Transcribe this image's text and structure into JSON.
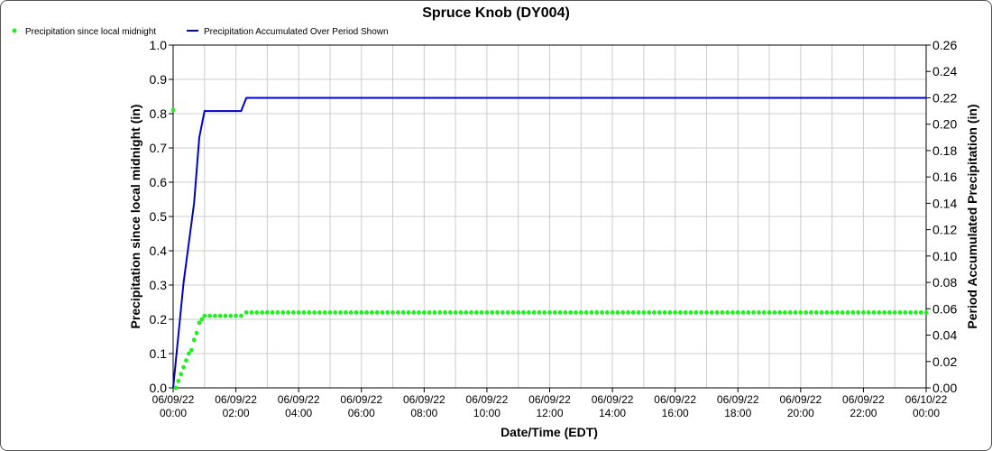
{
  "chart_data": {
    "type": "line",
    "title": "Spruce Knob (DY004)",
    "xlabel": "Date/Time (EDT)",
    "ylabel_left": "Precipitation since local midnight (in)",
    "ylabel_right": "Period Accumulated Precipitation (in)",
    "ylim_left": [
      0,
      1.0
    ],
    "ylim_right": [
      0,
      0.26
    ],
    "xlim_hours": [
      0,
      24
    ],
    "grid": true,
    "legend_placement": "top-left",
    "y_ticks_left": [
      "0.0",
      "0.1",
      "0.2",
      "0.3",
      "0.4",
      "0.5",
      "0.6",
      "0.7",
      "0.8",
      "0.9",
      "1.0"
    ],
    "y_ticks_right": [
      "0.00",
      "0.02",
      "0.04",
      "0.06",
      "0.08",
      "0.10",
      "0.12",
      "0.14",
      "0.16",
      "0.18",
      "0.20",
      "0.22",
      "0.24",
      "0.26"
    ],
    "x_ticks": [
      {
        "date": "06/09/22",
        "time": "00:00"
      },
      {
        "date": "06/09/22",
        "time": "02:00"
      },
      {
        "date": "06/09/22",
        "time": "04:00"
      },
      {
        "date": "06/09/22",
        "time": "06:00"
      },
      {
        "date": "06/09/22",
        "time": "08:00"
      },
      {
        "date": "06/09/22",
        "time": "10:00"
      },
      {
        "date": "06/09/22",
        "time": "12:00"
      },
      {
        "date": "06/09/22",
        "time": "14:00"
      },
      {
        "date": "06/09/22",
        "time": "16:00"
      },
      {
        "date": "06/09/22",
        "time": "18:00"
      },
      {
        "date": "06/09/22",
        "time": "20:00"
      },
      {
        "date": "06/09/22",
        "time": "22:00"
      },
      {
        "date": "06/10/22",
        "time": "00:00"
      }
    ],
    "series": [
      {
        "name": "Precipitation since local midnight",
        "axis": "left",
        "style": "dots",
        "color": "#22ee22",
        "points": [
          {
            "time": "00:00",
            "value": 0.81
          },
          {
            "time": "00:05",
            "value": 0.0
          },
          {
            "time": "00:10",
            "value": 0.02
          },
          {
            "time": "00:15",
            "value": 0.04
          },
          {
            "time": "00:20",
            "value": 0.06
          },
          {
            "time": "00:25",
            "value": 0.08
          },
          {
            "time": "00:30",
            "value": 0.1
          },
          {
            "time": "00:35",
            "value": 0.11
          },
          {
            "time": "00:40",
            "value": 0.14
          },
          {
            "time": "00:45",
            "value": 0.16
          },
          {
            "time": "00:50",
            "value": 0.19
          },
          {
            "time": "00:55",
            "value": 0.2
          },
          {
            "time": "01:00",
            "value": 0.21
          },
          {
            "time": "02:10",
            "value": 0.21
          },
          {
            "time": "02:15",
            "value": 0.22
          },
          {
            "time": "00:00 (06/10/22)",
            "value": 0.22
          }
        ],
        "sample_interval_minutes": 10
      },
      {
        "name": "Precipitation Accumulated Over Period Shown",
        "axis": "right",
        "style": "line",
        "color": "#0000cc",
        "points": [
          {
            "time": "00:00",
            "value": 0.0
          },
          {
            "time": "00:10",
            "value": 0.04
          },
          {
            "time": "00:20",
            "value": 0.08
          },
          {
            "time": "00:40",
            "value": 0.14
          },
          {
            "time": "00:50",
            "value": 0.19
          },
          {
            "time": "01:00",
            "value": 0.21
          },
          {
            "time": "02:10",
            "value": 0.21
          },
          {
            "time": "02:20",
            "value": 0.22
          },
          {
            "time": "00:00 (06/10/22)",
            "value": 0.22
          }
        ]
      }
    ]
  },
  "colors": {
    "grid": "#cccccc",
    "axis": "#000000"
  }
}
